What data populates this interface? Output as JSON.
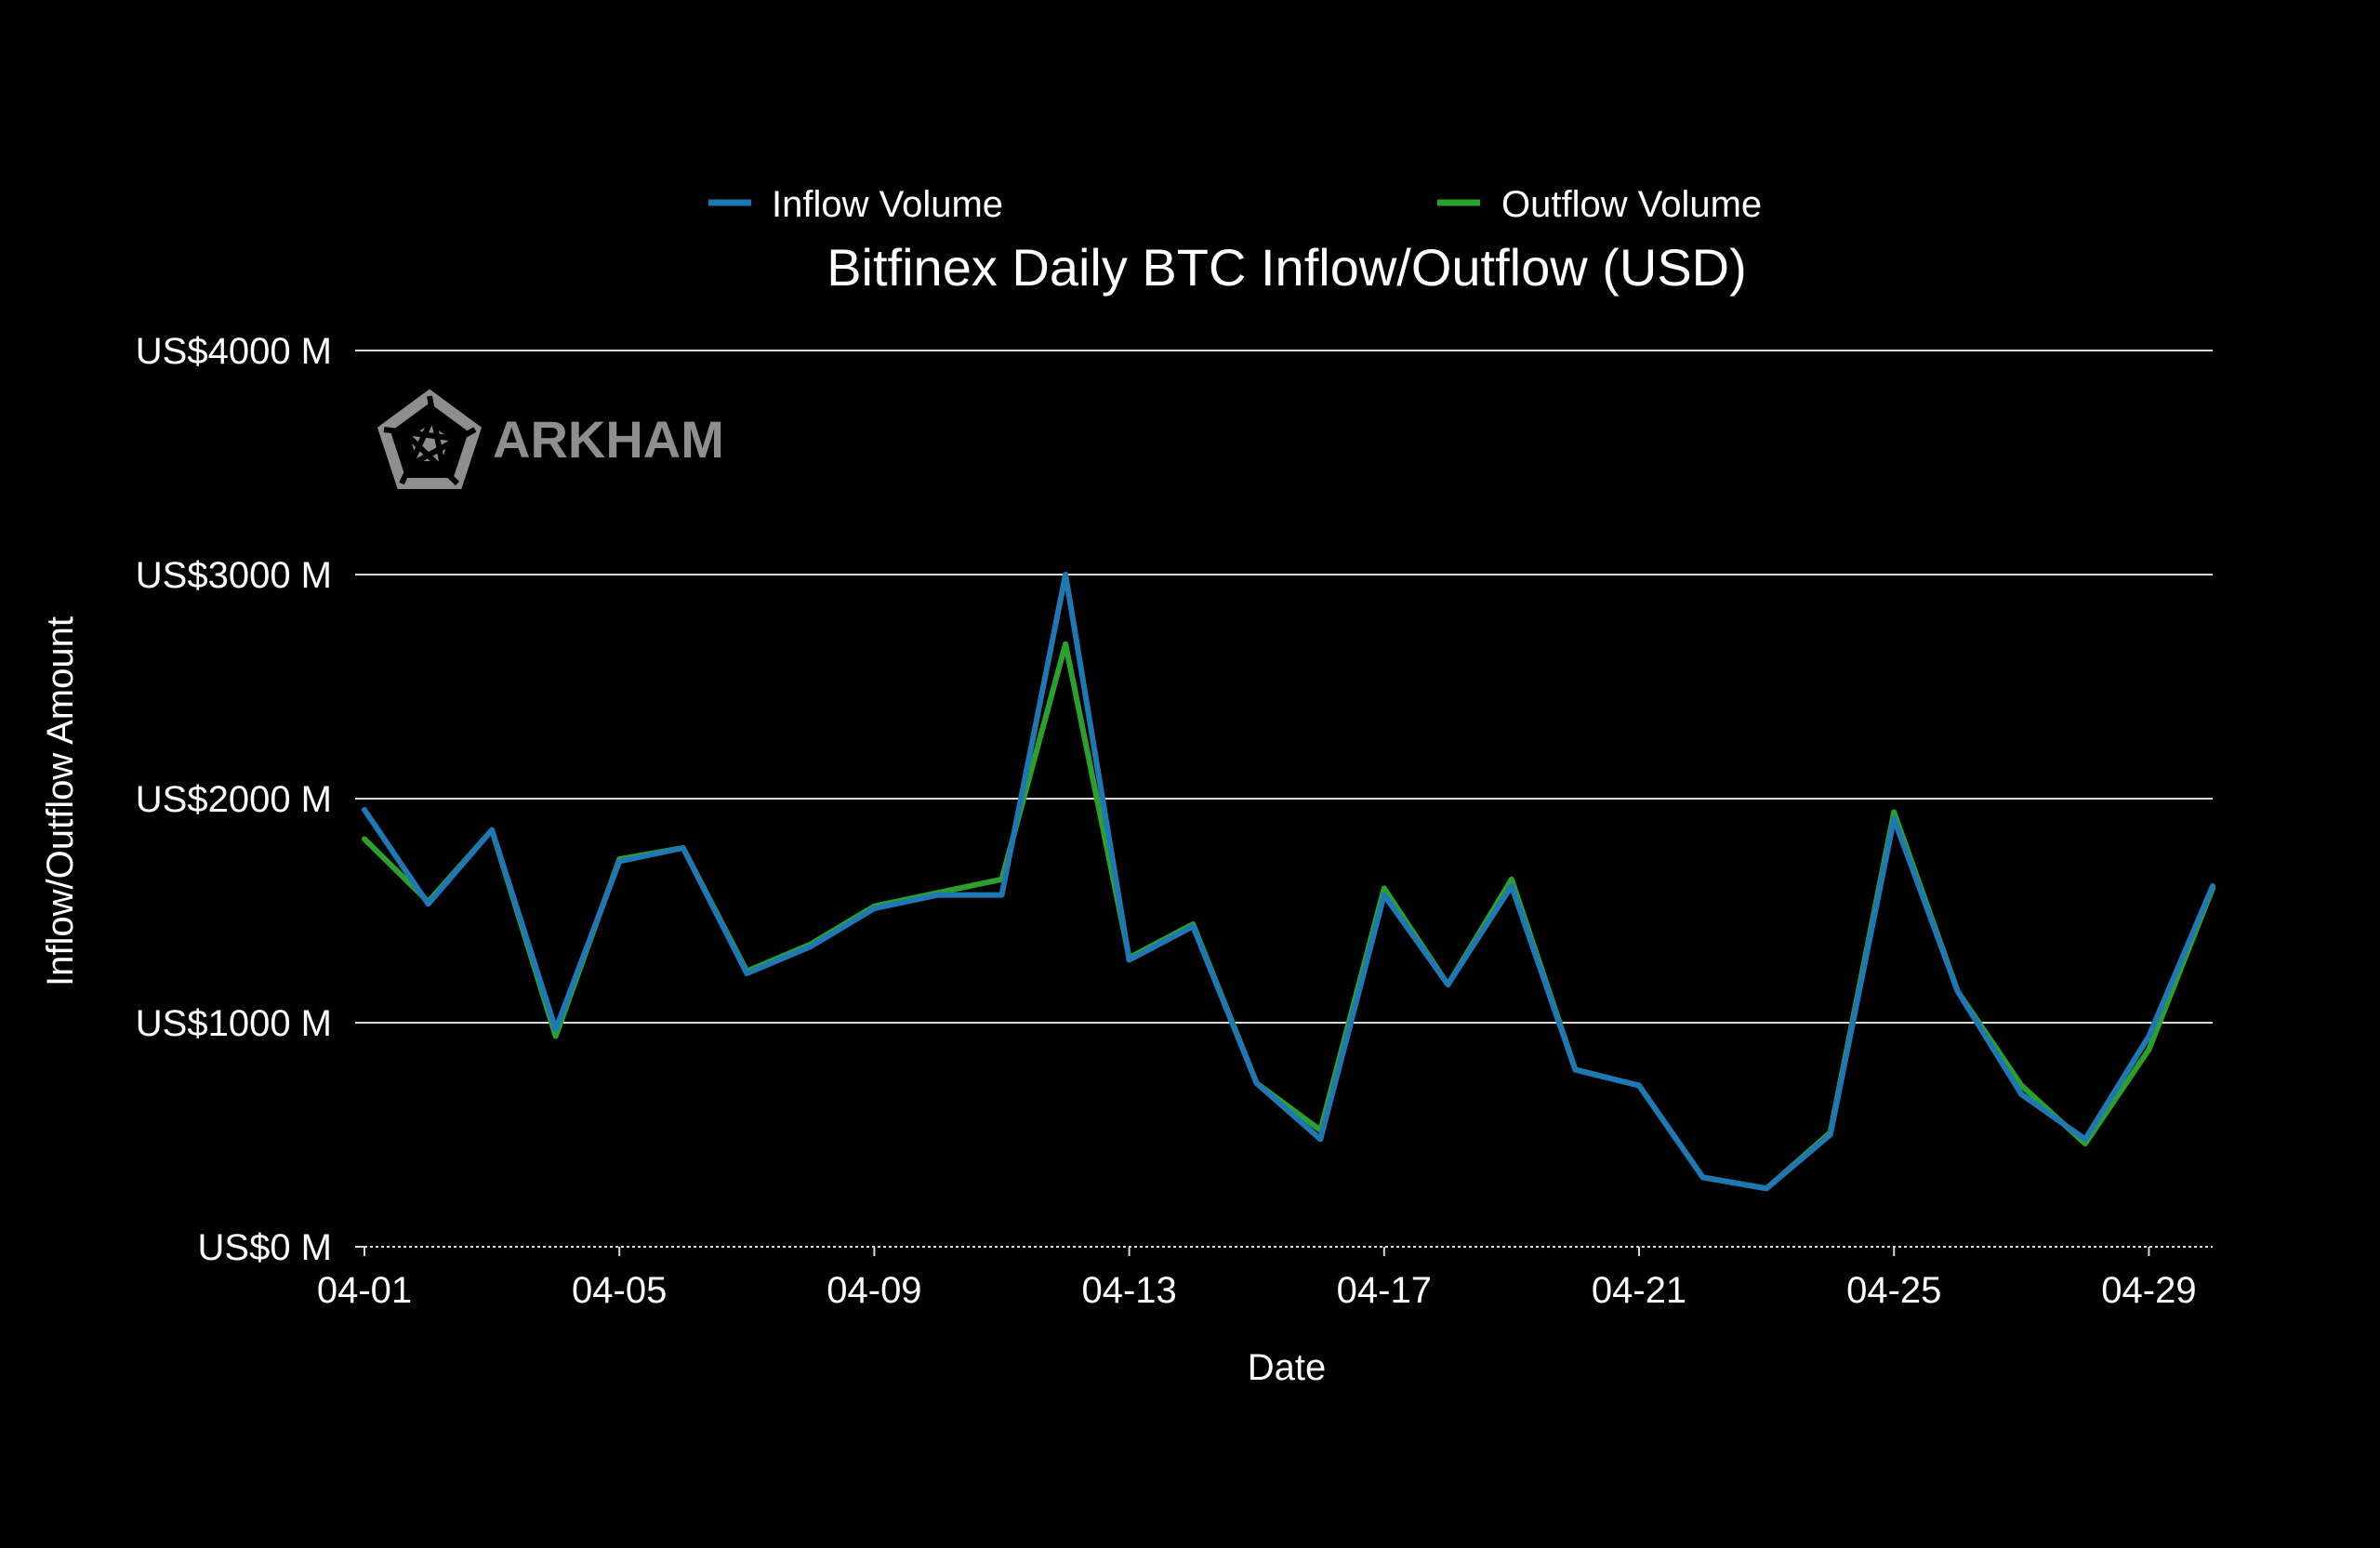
{
  "watermark": {
    "text": "ARKHAM"
  },
  "colors": {
    "background": "#000000",
    "inflow": "#1f77b4",
    "outflow": "#2ca02c",
    "grid": "#d9d9d9",
    "text": "#ffffff",
    "watermark": "#8e8e8e"
  },
  "chart_data": {
    "type": "line",
    "title": "Bitfinex Daily BTC Inflow/Outflow (USD)",
    "xlabel": "Date",
    "ylabel": "Inflow/Outflow Amount",
    "x": [
      "04-01",
      "04-02",
      "04-03",
      "04-04",
      "04-05",
      "04-06",
      "04-07",
      "04-08",
      "04-09",
      "04-10",
      "04-11",
      "04-12",
      "04-13",
      "04-14",
      "04-15",
      "04-16",
      "04-17",
      "04-18",
      "04-19",
      "04-20",
      "04-21",
      "04-22",
      "04-23",
      "04-24",
      "04-25",
      "04-26",
      "04-27",
      "04-28",
      "04-29",
      "04-30"
    ],
    "xticks": [
      "04-01",
      "04-05",
      "04-09",
      "04-13",
      "04-17",
      "04-21",
      "04-25",
      "04-29"
    ],
    "ylim": [
      0,
      4000
    ],
    "yticks": [
      0,
      1000,
      2000,
      3000,
      4000
    ],
    "ytick_labels": [
      "US$0 M",
      "US$1000 M",
      "US$2000 M",
      "US$3000 M",
      "US$4000 M"
    ],
    "grid": true,
    "legend_position": "top",
    "series": [
      {
        "name": "Inflow Volume",
        "color": "#1f77b4",
        "values": [
          1950,
          1530,
          1860,
          970,
          1720,
          1780,
          1220,
          1340,
          1510,
          1570,
          1570,
          3000,
          1280,
          1430,
          730,
          480,
          1570,
          1170,
          1610,
          790,
          720,
          310,
          260,
          500,
          1910,
          1140,
          680,
          480,
          940,
          1610
        ]
      },
      {
        "name": "Outflow Volume",
        "color": "#2ca02c",
        "values": [
          1820,
          1540,
          1860,
          940,
          1730,
          1780,
          1230,
          1350,
          1520,
          1580,
          1640,
          2690,
          1290,
          1440,
          730,
          520,
          1600,
          1170,
          1640,
          790,
          720,
          310,
          260,
          510,
          1940,
          1140,
          720,
          460,
          880,
          1600
        ]
      }
    ]
  }
}
